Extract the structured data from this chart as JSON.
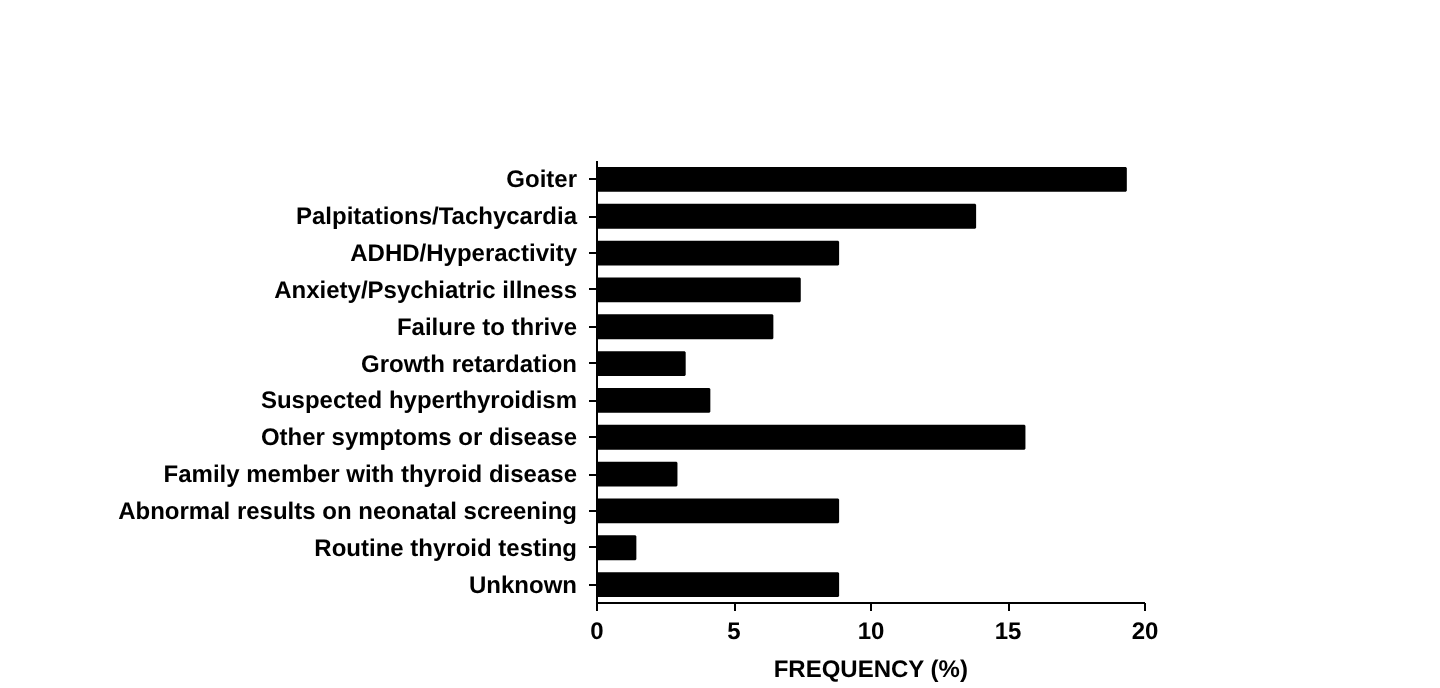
{
  "chart_data": {
    "type": "bar",
    "orientation": "horizontal",
    "categories": [
      "Goiter",
      "Palpitations/Tachycardia",
      "ADHD/Hyperactivity",
      "Anxiety/Psychiatric illness",
      "Failure to thrive",
      "Growth retardation",
      "Suspected hyperthyroidism",
      "Other symptoms or disease",
      "Family member with thyroid disease",
      "Abnormal results on neonatal screening",
      "Routine thyroid testing",
      "Unknown"
    ],
    "values": [
      19.3,
      13.8,
      8.8,
      7.4,
      6.4,
      3.2,
      4.1,
      15.6,
      2.9,
      8.8,
      1.4,
      8.8
    ],
    "color": "#000000",
    "xlabel": "FREQUENCY (%)",
    "xlim": [
      0,
      20
    ],
    "xticks": [
      0,
      5,
      10,
      15,
      20
    ],
    "grid": false
  }
}
